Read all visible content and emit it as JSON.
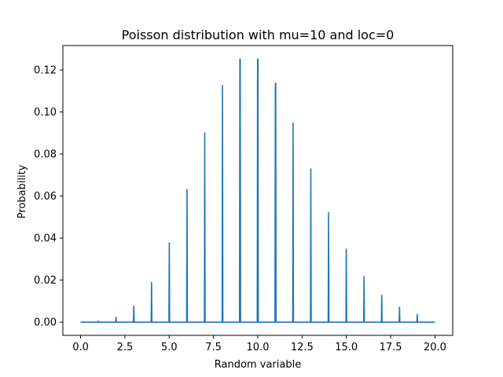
{
  "chart_data": {
    "type": "line",
    "title": "Poisson distribution with mu=10 and loc=0",
    "xlabel": "Random variable",
    "ylabel": "Probability",
    "xlim": [
      -1.0,
      21.0
    ],
    "ylim": [
      -0.0063,
      0.1316
    ],
    "xticks": [
      0.0,
      2.5,
      5.0,
      7.5,
      10.0,
      12.5,
      15.0,
      17.5,
      20.0
    ],
    "xtick_labels": [
      "0.0",
      "2.5",
      "5.0",
      "7.5",
      "10.0",
      "12.5",
      "15.0",
      "17.5",
      "20.0"
    ],
    "yticks": [
      0.0,
      0.02,
      0.04,
      0.06,
      0.08,
      0.1,
      0.12
    ],
    "ytick_labels": [
      "0.00",
      "0.02",
      "0.04",
      "0.06",
      "0.08",
      "0.10",
      "0.12"
    ],
    "grid": false,
    "line_color": "#1f77b4",
    "series": [
      {
        "k": [
          0,
          1,
          2,
          3,
          4,
          5,
          6,
          7,
          8,
          9,
          10,
          11,
          12,
          13,
          14,
          15,
          16,
          17,
          18,
          19,
          20
        ],
        "pmf": [
          5e-05,
          0.0005,
          0.0023,
          0.0076,
          0.0189,
          0.0378,
          0.0631,
          0.0901,
          0.1126,
          0.1251,
          0.1251,
          0.1137,
          0.0948,
          0.0729,
          0.0521,
          0.0347,
          0.0217,
          0.0128,
          0.0071,
          0.0037,
          0.0
        ]
      }
    ]
  }
}
